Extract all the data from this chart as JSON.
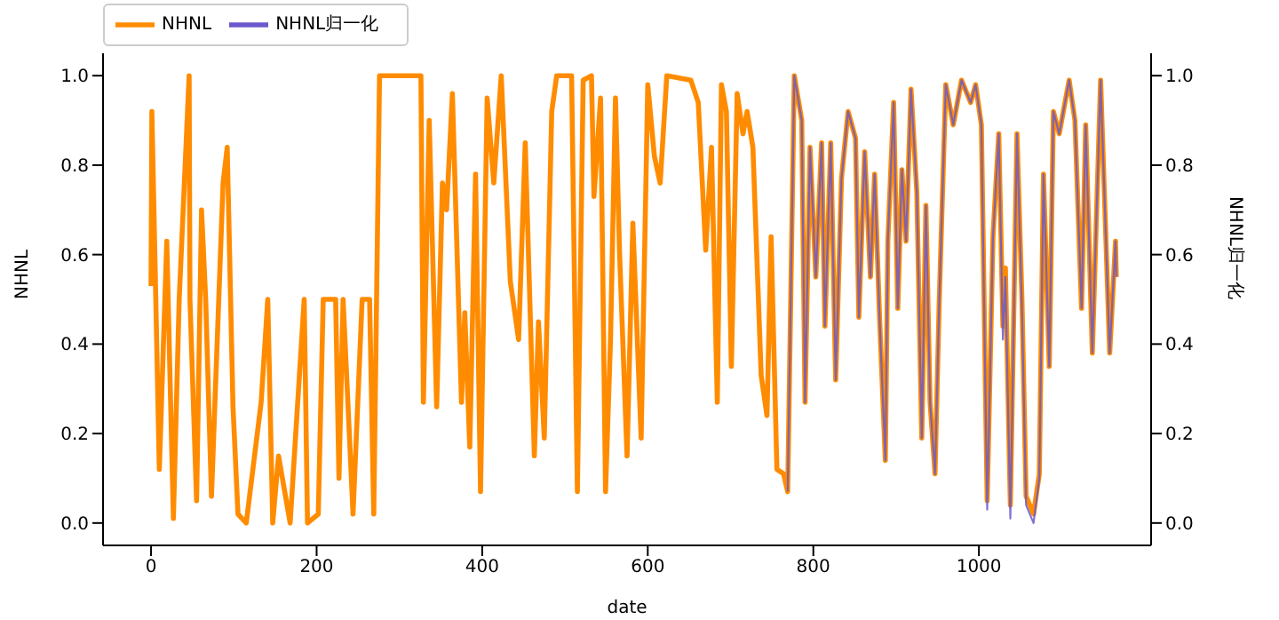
{
  "chart_data": {
    "type": "line",
    "xlabel": "date",
    "ylabel": "NHNL",
    "y2label": "NHNL归一化",
    "legend": "top left",
    "grid": false,
    "xlim": [
      -58,
      1208
    ],
    "xticks": [
      0,
      200,
      400,
      600,
      800,
      1000
    ],
    "ylim": [
      -0.05,
      1.05
    ],
    "yticks": [
      {
        "value": 0,
        "label": "0.0"
      },
      {
        "value": 0.2,
        "label": "0.2"
      },
      {
        "value": 0.4,
        "label": "0.4"
      },
      {
        "value": 0.6,
        "label": "0.6"
      },
      {
        "value": 0.8,
        "label": "0.8"
      },
      {
        "value": 1,
        "label": "1.0"
      }
    ],
    "y2lim": [
      -0.05,
      1.05
    ],
    "y2ticks": [
      {
        "value": 0,
        "label": "0.0"
      },
      {
        "value": 0.2,
        "label": "0.2"
      },
      {
        "value": 0.4,
        "label": "0.4"
      },
      {
        "value": 0.6,
        "label": "0.6"
      },
      {
        "value": 0.8,
        "label": "0.8"
      },
      {
        "value": 1,
        "label": "1.0"
      }
    ],
    "series": [
      {
        "name": "NHNL",
        "color": "#ff8c00",
        "x": [
          0,
          1,
          10,
          19,
          27,
          34,
          46,
          47,
          55,
          61,
          66,
          73,
          87,
          92,
          99,
          105,
          115,
          133,
          141,
          147,
          154,
          168,
          185,
          189,
          202,
          208,
          223,
          227,
          232,
          244,
          255,
          264,
          269,
          276,
          326,
          329,
          336,
          345,
          352,
          357,
          364,
          375,
          379,
          385,
          392,
          398,
          406,
          414,
          423,
          434,
          444,
          452,
          463,
          468,
          475,
          484,
          490,
          508,
          515,
          522,
          532,
          535,
          543,
          549,
          555,
          561,
          566,
          575,
          582,
          592,
          600,
          608,
          615,
          623,
          652,
          661,
          670,
          677,
          684,
          689,
          695,
          701,
          708,
          715,
          720,
          727,
          737,
          744,
          749,
          756,
          764,
          769,
          777,
          786,
          790,
          796,
          803,
          810,
          814,
          821,
          827,
          834,
          842,
          851,
          855,
          862,
          869,
          874,
          880,
          887,
          890,
          897,
          902,
          907,
          912,
          918,
          925,
          931,
          936,
          941,
          947,
          952,
          960,
          969,
          979,
          990,
          996,
          1003,
          1010,
          1017,
          1024,
          1029,
          1032,
          1038,
          1046,
          1052,
          1057,
          1066,
          1073,
          1078,
          1085,
          1090,
          1097,
          1109,
          1116,
          1124,
          1129,
          1137,
          1147,
          1158,
          1165,
          1166
        ],
        "values": [
          0.53,
          0.92,
          0.12,
          0.63,
          0.01,
          0.5,
          1.0,
          0.5,
          0.05,
          0.7,
          0.5,
          0.06,
          0.76,
          0.84,
          0.26,
          0.02,
          0.0,
          0.27,
          0.5,
          0.0,
          0.15,
          0.0,
          0.5,
          0.0,
          0.02,
          0.5,
          0.5,
          0.1,
          0.5,
          0.02,
          0.5,
          0.5,
          0.02,
          1.0,
          1.0,
          0.27,
          0.9,
          0.26,
          0.76,
          0.7,
          0.96,
          0.27,
          0.47,
          0.17,
          0.78,
          0.07,
          0.95,
          0.76,
          1.0,
          0.54,
          0.41,
          0.85,
          0.15,
          0.45,
          0.19,
          0.92,
          1.0,
          1.0,
          0.07,
          0.99,
          1.0,
          0.73,
          0.95,
          0.07,
          0.41,
          0.95,
          0.6,
          0.15,
          0.67,
          0.19,
          0.98,
          0.82,
          0.76,
          1.0,
          0.99,
          0.94,
          0.61,
          0.84,
          0.27,
          0.98,
          0.92,
          0.35,
          0.96,
          0.87,
          0.92,
          0.84,
          0.33,
          0.24,
          0.64,
          0.12,
          0.11,
          0.07,
          1.0,
          0.9,
          0.27,
          0.84,
          0.55,
          0.85,
          0.44,
          0.85,
          0.32,
          0.77,
          0.92,
          0.86,
          0.46,
          0.83,
          0.55,
          0.78,
          0.46,
          0.14,
          0.63,
          0.94,
          0.48,
          0.79,
          0.63,
          0.97,
          0.74,
          0.19,
          0.71,
          0.27,
          0.11,
          0.49,
          0.98,
          0.89,
          0.99,
          0.94,
          0.98,
          0.89,
          0.05,
          0.64,
          0.87,
          0.44,
          0.57,
          0.04,
          0.87,
          0.5,
          0.06,
          0.02,
          0.11,
          0.78,
          0.35,
          0.92,
          0.87,
          0.99,
          0.9,
          0.48,
          0.89,
          0.38,
          0.99,
          0.38,
          0.63,
          0.55
        ]
      },
      {
        "name": "NHNL归一化",
        "color": "#6a5acd",
        "axis": "y2",
        "x": [
          769,
          777,
          786,
          790,
          796,
          803,
          810,
          814,
          821,
          827,
          834,
          842,
          851,
          855,
          862,
          869,
          874,
          880,
          887,
          890,
          897,
          902,
          907,
          912,
          918,
          925,
          931,
          936,
          941,
          947,
          952,
          960,
          969,
          979,
          990,
          996,
          1003,
          1010,
          1017,
          1024,
          1029,
          1032,
          1038,
          1046,
          1052,
          1057,
          1066,
          1073,
          1078,
          1085,
          1090,
          1097,
          1109,
          1116,
          1124,
          1129,
          1137,
          1147,
          1158,
          1165,
          1166
        ],
        "values": [
          0.07,
          1.0,
          0.9,
          0.27,
          0.84,
          0.55,
          0.85,
          0.44,
          0.85,
          0.32,
          0.77,
          0.92,
          0.86,
          0.46,
          0.83,
          0.55,
          0.78,
          0.46,
          0.14,
          0.63,
          0.94,
          0.48,
          0.79,
          0.63,
          0.97,
          0.74,
          0.19,
          0.71,
          0.27,
          0.11,
          0.49,
          0.98,
          0.89,
          0.99,
          0.94,
          0.98,
          0.89,
          0.03,
          0.64,
          0.87,
          0.41,
          0.55,
          0.01,
          0.87,
          0.48,
          0.04,
          0.0,
          0.1,
          0.78,
          0.35,
          0.92,
          0.87,
          0.99,
          0.9,
          0.48,
          0.89,
          0.38,
          0.99,
          0.38,
          0.63,
          0.55
        ]
      }
    ]
  }
}
